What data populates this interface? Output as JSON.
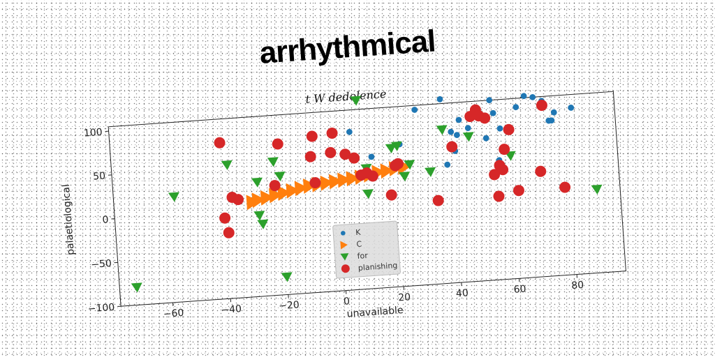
{
  "title": "arrhythmical",
  "chart_data": {
    "type": "scatter",
    "subtitle": "t W dedolence",
    "xlabel": "unavailable",
    "ylabel": "palaetiological",
    "xlim": [
      -78,
      97
    ],
    "ylim": [
      -100,
      105
    ],
    "xticks": [
      -60,
      -40,
      -20,
      0,
      20,
      40,
      60,
      80
    ],
    "yticks": [
      -100,
      -50,
      0,
      50,
      100
    ],
    "grid": false,
    "legend_position": "lower-center",
    "series": [
      {
        "name": "K",
        "marker": "circle-small",
        "color": "#1f77b4",
        "x": [
          5,
          28,
          37,
          40,
          41,
          42,
          43,
          46,
          52,
          54,
          55,
          56,
          57,
          60,
          63,
          66,
          69,
          72,
          74,
          75,
          76,
          82,
          38,
          12,
          22
        ],
        "y": [
          80,
          100,
          110,
          72,
          50,
          68,
          85,
          75,
          62,
          105,
          90,
          36,
          72,
          72,
          95,
          107,
          105,
          100,
          77,
          77,
          86,
          90,
          35,
          50,
          62
        ]
      },
      {
        "name": "C",
        "marker": "triangle-right",
        "color": "#ff7f0e",
        "x": [
          -30,
          -28,
          -25,
          -22,
          -19,
          -16,
          -13,
          -10,
          -7,
          -4,
          -1,
          2,
          5,
          8,
          11,
          14,
          17,
          20,
          23
        ],
        "y": [
          8,
          10,
          12,
          14,
          16,
          18,
          20,
          22,
          23,
          24,
          25,
          26,
          27,
          28,
          30,
          32,
          33,
          35,
          36
        ]
      },
      {
        "name": "for",
        "marker": "triangle-down",
        "color": "#2ca02c",
        "x": [
          -72,
          -57,
          -38,
          -28,
          -27,
          -20,
          -22,
          8,
          10,
          19,
          21,
          23,
          25,
          32,
          37,
          46,
          60,
          89,
          10,
          -20,
          -28
        ],
        "y": [
          -80,
          20,
          52,
          -8,
          -18,
          35,
          52,
          115,
          37,
          58,
          60,
          25,
          38,
          28,
          75,
          65,
          40,
          -5,
          8,
          -80,
          30
        ]
      },
      {
        "name": "planishing",
        "marker": "circle",
        "color": "#d62728",
        "x": [
          -40,
          -39,
          -40,
          -37,
          -35,
          -22,
          -20,
          -8,
          -9,
          -2,
          -1,
          -8,
          3,
          6,
          8,
          10,
          12,
          18,
          20,
          34,
          40,
          47,
          49,
          50,
          52,
          54,
          55,
          56,
          57,
          58,
          60,
          62,
          70,
          72,
          78,
          21
        ],
        "y": [
          -8,
          -25,
          78,
          15,
          12,
          25,
          72,
          25,
          55,
          58,
          80,
          78,
          55,
          50,
          30,
          32,
          28,
          5,
          38,
          -5,
          55,
          88,
          95,
          88,
          85,
          20,
          -5,
          30,
          25,
          48,
          70,
          0,
          20,
          95,
          0,
          40
        ]
      }
    ]
  }
}
